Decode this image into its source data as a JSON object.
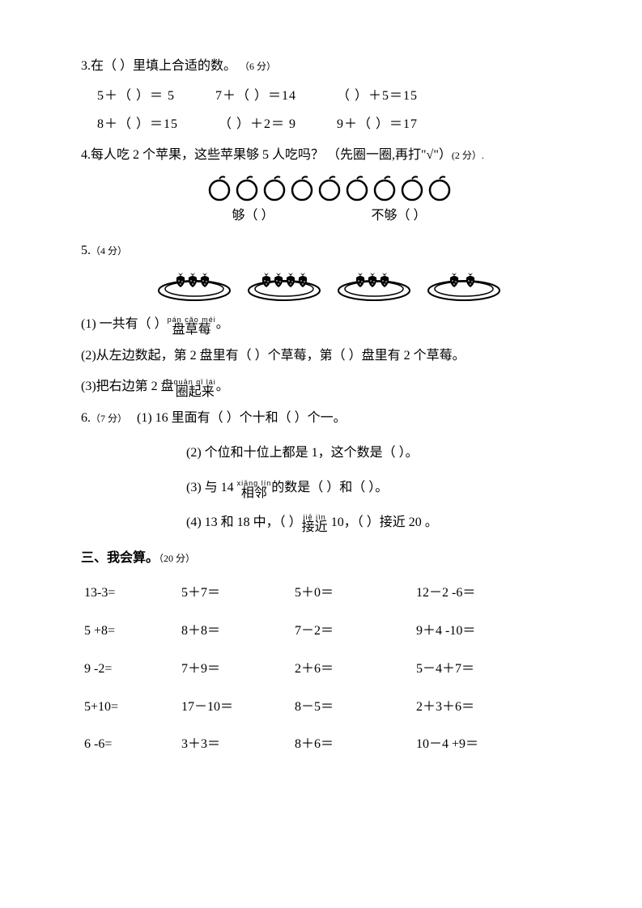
{
  "q3": {
    "title": "3.在（ ）里填上合适的数。",
    "points": "（6 分）",
    "rows": [
      [
        "5＋（ ）＝ 5",
        "7＋（ ）＝14",
        "（ ）＋5＝15"
      ],
      [
        "8＋（ ）＝15",
        "（ ）＋2＝ 9",
        "9＋（ ）＝17"
      ]
    ]
  },
  "q4": {
    "title": "4.每人吃 2 个苹果，这些苹果够 5 人吃吗？ （先圈一圈,再打\"√\"）",
    "points": "(2 分）.",
    "apple_count": 9,
    "enough": "够（   ）",
    "not_enough": "不够（   ）",
    "apple_color": "#000000"
  },
  "q5": {
    "title": "5.",
    "points": "（4 分）",
    "plates": [
      3,
      4,
      3,
      2
    ],
    "sub1_pre": "(1) 一共有（  ）",
    "sub1_pinyin": "pán cǎo méi",
    "sub1_hanzi": "盘草莓",
    "sub1_post": "。",
    "sub2": "(2)从左边数起，第 2 盘里有（  ）个草莓，第（  ）盘里有 2 个草莓。",
    "sub3_pre": "(3)把右边第 2 盘",
    "sub3_pinyin": "quān qǐ  lái",
    "sub3_hanzi": "圈起来",
    "sub3_post": "。"
  },
  "q6": {
    "title": "6.",
    "points": "（7 分）",
    "sub1": "(1) 16 里面有（   ）个十和（   ）个一。",
    "sub2": "(2) 个位和十位上都是 1，这个数是（   ）。",
    "sub3_pre": "(3) 与 14 ",
    "sub3_pinyin": "xiāng lín",
    "sub3_hanzi": "相邻",
    "sub3_post": "的数是（   ）和（   ）。",
    "sub4_pre": "(4) 13 和 18 中，（  ）",
    "sub4_pinyin": "jiē  jìn",
    "sub4_hanzi": "接近",
    "sub4_post": " 10，（  ）接近 20 。"
  },
  "section3": {
    "title": "三、我会算。",
    "points": "（20 分）",
    "rows": [
      [
        "13-3=",
        "5＋7＝",
        "5＋0＝",
        "12－2 -6＝"
      ],
      [
        "5 +8=",
        "8＋8＝",
        "7－2＝",
        "9＋4 -10＝"
      ],
      [
        "9 -2=",
        "7＋9＝",
        "2＋6＝",
        "5－4＋7＝"
      ],
      [
        "5+10=",
        "17－10＝",
        "8－5＝",
        "2＋3＋6＝"
      ],
      [
        "6 -6=",
        "3＋3＝",
        "8＋6＝",
        "10－4 +9＝"
      ]
    ]
  }
}
